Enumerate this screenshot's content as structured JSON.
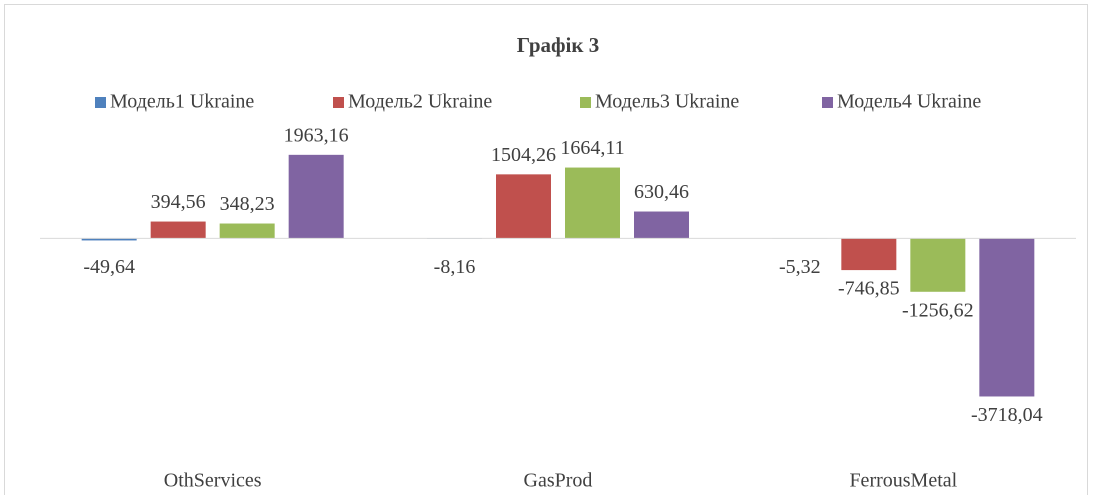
{
  "chart_data": {
    "type": "bar",
    "title": "Графік 3",
    "categories": [
      "OthServices",
      "GasProd",
      "FerrousMetal"
    ],
    "series": [
      {
        "name": "Модель1 Ukraine",
        "color": "#4f81bd",
        "values": [
          -49.64,
          -8.16,
          -5.32
        ],
        "value_labels": [
          "-49,64",
          "-8,16",
          "-5,32"
        ]
      },
      {
        "name": "Модель2 Ukraine",
        "color": "#c0504d",
        "values": [
          394.56,
          1504.26,
          -746.85
        ],
        "value_labels": [
          "394,56",
          "1504,26",
          "-746,85"
        ]
      },
      {
        "name": "Модель3 Ukraine",
        "color": "#9bbb59",
        "values": [
          348.23,
          1664.11,
          -1256.62
        ],
        "value_labels": [
          "348,23",
          "1664,11",
          "-1256,62"
        ]
      },
      {
        "name": "Модель4 Ukraine",
        "color": "#8064a2",
        "values": [
          1963.16,
          630.46,
          -3718.04
        ],
        "value_labels": [
          "1963,16",
          "630,46",
          "-3718,04"
        ]
      }
    ],
    "ylim": [
      -5000,
      2500
    ],
    "legend": "top"
  }
}
